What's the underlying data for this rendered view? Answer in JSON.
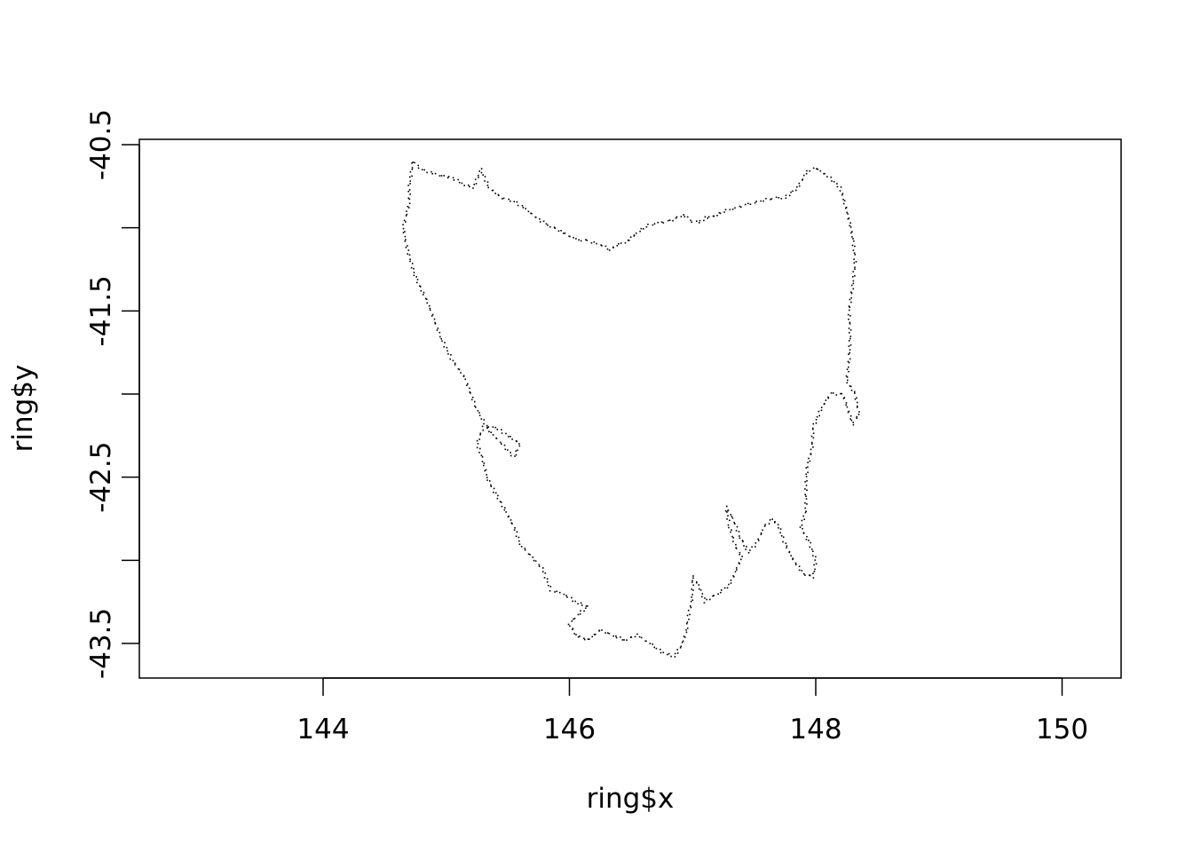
{
  "chart_data": {
    "type": "scatter",
    "title": "",
    "xlabel": "ring$x",
    "ylabel": "ring$y",
    "xlim": [
      142.5,
      150.5
    ],
    "ylim": [
      -43.7,
      -40.5
    ],
    "x_ticks": [
      144,
      146,
      148,
      150
    ],
    "x_tick_labels": [
      "144",
      "146",
      "148",
      "150"
    ],
    "y_ticks": [
      -40.5,
      -41,
      -41.5,
      -42,
      -42.5,
      -43,
      -43.5
    ],
    "y_tick_labels": [
      "-40.5",
      "",
      "-41.5",
      "",
      "-42.5",
      "",
      "-43.5"
    ],
    "grid": false,
    "point_color": "#000000",
    "outline": [
      [
        144.73,
        -40.6
      ],
      [
        144.8,
        -40.65
      ],
      [
        144.92,
        -40.68
      ],
      [
        145.05,
        -40.7
      ],
      [
        145.15,
        -40.74
      ],
      [
        145.22,
        -40.76
      ],
      [
        145.28,
        -40.65
      ],
      [
        145.35,
        -40.76
      ],
      [
        145.45,
        -40.82
      ],
      [
        145.55,
        -40.84
      ],
      [
        145.65,
        -40.89
      ],
      [
        145.75,
        -40.95
      ],
      [
        145.85,
        -40.99
      ],
      [
        145.95,
        -41.03
      ],
      [
        146.05,
        -41.07
      ],
      [
        146.15,
        -41.08
      ],
      [
        146.25,
        -41.1
      ],
      [
        146.33,
        -41.13
      ],
      [
        146.4,
        -41.1
      ],
      [
        146.47,
        -41.08
      ],
      [
        146.55,
        -41.03
      ],
      [
        146.62,
        -40.99
      ],
      [
        146.72,
        -40.97
      ],
      [
        146.82,
        -40.96
      ],
      [
        146.92,
        -40.92
      ],
      [
        147.0,
        -40.96
      ],
      [
        147.05,
        -40.97
      ],
      [
        147.1,
        -40.94
      ],
      [
        147.18,
        -40.93
      ],
      [
        147.25,
        -40.9
      ],
      [
        147.35,
        -40.88
      ],
      [
        147.45,
        -40.86
      ],
      [
        147.55,
        -40.84
      ],
      [
        147.65,
        -40.82
      ],
      [
        147.75,
        -40.82
      ],
      [
        147.85,
        -40.76
      ],
      [
        147.93,
        -40.66
      ],
      [
        148.0,
        -40.64
      ],
      [
        148.1,
        -40.69
      ],
      [
        148.2,
        -40.76
      ],
      [
        148.26,
        -40.92
      ],
      [
        148.3,
        -41.05
      ],
      [
        148.32,
        -41.2
      ],
      [
        148.3,
        -41.35
      ],
      [
        148.27,
        -41.5
      ],
      [
        148.28,
        -41.65
      ],
      [
        148.27,
        -41.8
      ],
      [
        148.25,
        -41.92
      ],
      [
        148.32,
        -42.0
      ],
      [
        148.35,
        -42.12
      ],
      [
        148.3,
        -42.18
      ],
      [
        148.22,
        -42.0
      ],
      [
        148.12,
        -42.0
      ],
      [
        148.05,
        -42.08
      ],
      [
        147.98,
        -42.2
      ],
      [
        147.97,
        -42.32
      ],
      [
        147.93,
        -42.45
      ],
      [
        147.92,
        -42.55
      ],
      [
        147.92,
        -42.7
      ],
      [
        147.88,
        -42.8
      ],
      [
        147.95,
        -42.9
      ],
      [
        148.0,
        -43.0
      ],
      [
        147.98,
        -43.1
      ],
      [
        147.9,
        -43.08
      ],
      [
        147.82,
        -43.0
      ],
      [
        147.75,
        -42.9
      ],
      [
        147.7,
        -42.8
      ],
      [
        147.65,
        -42.75
      ],
      [
        147.58,
        -42.8
      ],
      [
        147.52,
        -42.9
      ],
      [
        147.45,
        -42.95
      ],
      [
        147.38,
        -42.85
      ],
      [
        147.33,
        -42.75
      ],
      [
        147.27,
        -42.68
      ],
      [
        147.3,
        -42.8
      ],
      [
        147.35,
        -42.92
      ],
      [
        147.4,
        -42.98
      ],
      [
        147.3,
        -43.15
      ],
      [
        147.2,
        -43.2
      ],
      [
        147.1,
        -43.25
      ],
      [
        147.05,
        -43.15
      ],
      [
        147.0,
        -43.1
      ],
      [
        147.0,
        -43.22
      ],
      [
        146.97,
        -43.32
      ],
      [
        146.95,
        -43.42
      ],
      [
        146.92,
        -43.5
      ],
      [
        146.85,
        -43.58
      ],
      [
        146.75,
        -43.55
      ],
      [
        146.65,
        -43.5
      ],
      [
        146.55,
        -43.45
      ],
      [
        146.45,
        -43.48
      ],
      [
        146.35,
        -43.45
      ],
      [
        146.25,
        -43.42
      ],
      [
        146.15,
        -43.48
      ],
      [
        146.05,
        -43.45
      ],
      [
        146.0,
        -43.38
      ],
      [
        146.08,
        -43.32
      ],
      [
        146.15,
        -43.28
      ],
      [
        146.05,
        -43.25
      ],
      [
        145.95,
        -43.2
      ],
      [
        145.85,
        -43.18
      ],
      [
        145.78,
        -43.05
      ],
      [
        145.68,
        -42.97
      ],
      [
        145.6,
        -42.9
      ],
      [
        145.55,
        -42.8
      ],
      [
        145.48,
        -42.7
      ],
      [
        145.4,
        -42.6
      ],
      [
        145.33,
        -42.5
      ],
      [
        145.3,
        -42.4
      ],
      [
        145.25,
        -42.3
      ],
      [
        145.3,
        -42.2
      ],
      [
        145.4,
        -42.2
      ],
      [
        145.5,
        -42.25
      ],
      [
        145.6,
        -42.3
      ],
      [
        145.55,
        -42.38
      ],
      [
        145.45,
        -42.3
      ],
      [
        145.35,
        -42.22
      ],
      [
        145.25,
        -42.1
      ],
      [
        145.15,
        -41.9
      ],
      [
        145.05,
        -41.8
      ],
      [
        144.95,
        -41.65
      ],
      [
        144.85,
        -41.45
      ],
      [
        144.75,
        -41.3
      ],
      [
        144.68,
        -41.12
      ],
      [
        144.65,
        -41.0
      ],
      [
        144.7,
        -40.85
      ],
      [
        144.7,
        -40.75
      ]
    ]
  }
}
